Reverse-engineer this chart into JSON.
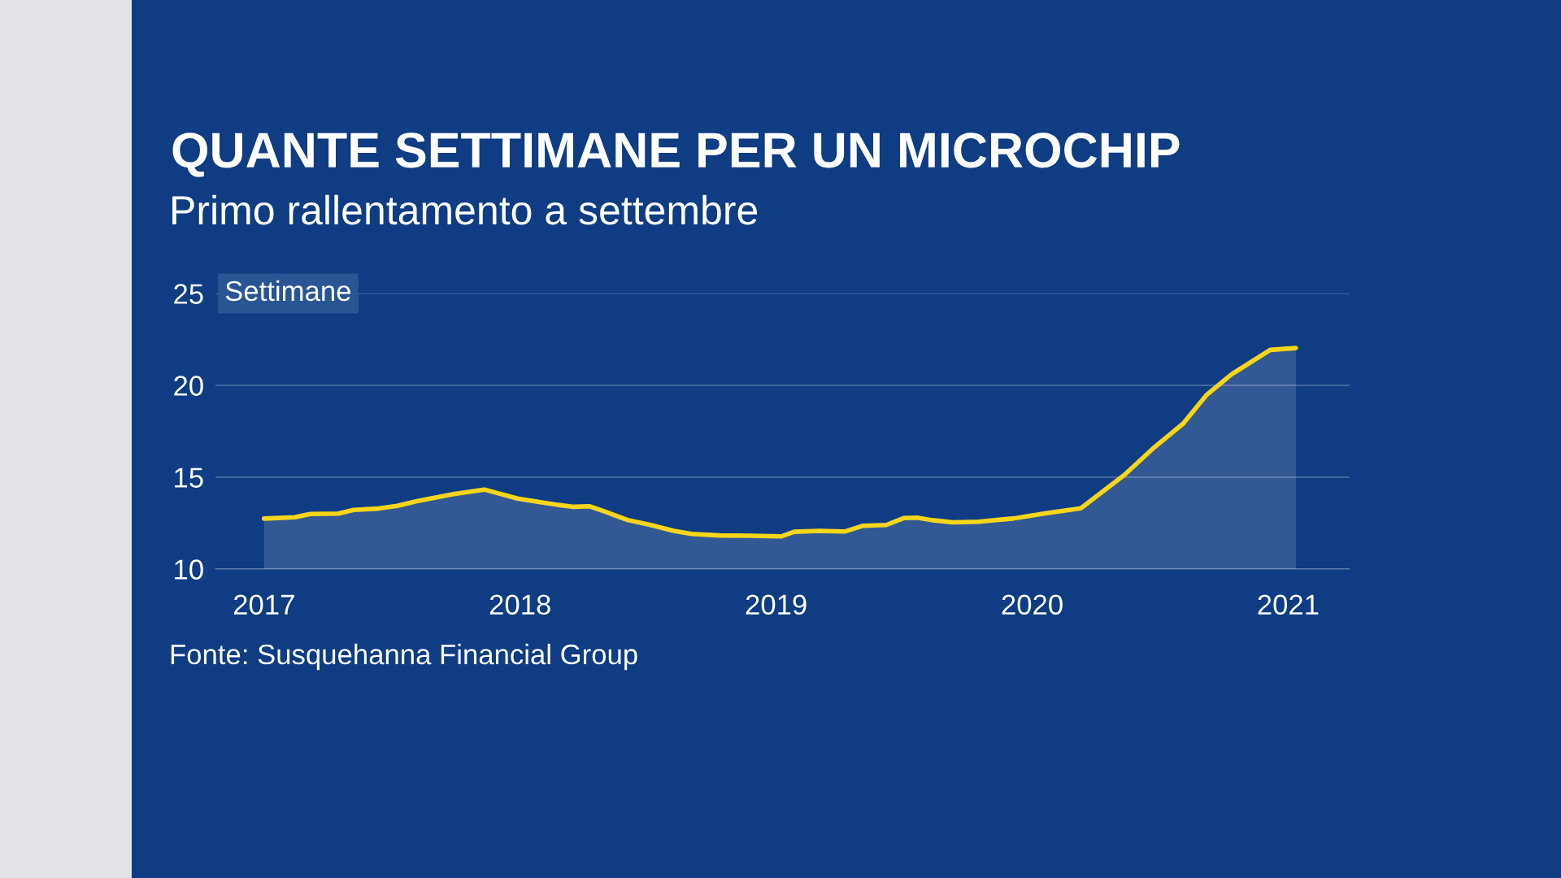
{
  "chart_data": {
    "type": "area",
    "title": "QUANTE SETTIMANE PER UN MICROCHIP",
    "subtitle": "Primo rallentamento a settembre",
    "ylabel": "Settimane",
    "annotations": [
      "Fonte: Susquehanna Financial Group"
    ],
    "xlim": [
      2016.81,
      2021.24
    ],
    "xticks": [
      2017,
      2018,
      2019,
      2020,
      2021
    ],
    "ylim": [
      10,
      25
    ],
    "yticks": [
      10,
      15,
      20,
      25
    ],
    "grid": "y",
    "legend": false,
    "series": [
      {
        "color": "#f7d61a",
        "x": [
          2017.0,
          2017.12,
          2017.18,
          2017.29,
          2017.35,
          2017.44,
          2017.52,
          2017.6,
          2017.74,
          2017.86,
          2017.99,
          2018.08,
          2018.15,
          2018.21,
          2018.27,
          2018.33,
          2018.42,
          2018.51,
          2018.6,
          2018.67,
          2018.78,
          2018.9,
          2019.02,
          2019.07,
          2019.17,
          2019.27,
          2019.34,
          2019.43,
          2019.5,
          2019.55,
          2019.61,
          2019.69,
          2019.79,
          2019.93,
          2020.05,
          2020.19,
          2020.36,
          2020.47,
          2020.59,
          2020.68,
          2020.78,
          2020.93,
          2021.03
        ],
        "values": [
          12.75,
          12.82,
          13.0,
          13.02,
          13.22,
          13.29,
          13.44,
          13.71,
          14.08,
          14.33,
          13.84,
          13.64,
          13.49,
          13.39,
          13.42,
          13.14,
          12.67,
          12.4,
          12.08,
          11.91,
          11.83,
          11.81,
          11.78,
          12.03,
          12.08,
          12.05,
          12.36,
          12.4,
          12.78,
          12.8,
          12.66,
          12.54,
          12.58,
          12.76,
          13.03,
          13.31,
          15.12,
          16.54,
          17.92,
          19.46,
          20.61,
          21.93,
          22.03
        ]
      }
    ]
  }
}
